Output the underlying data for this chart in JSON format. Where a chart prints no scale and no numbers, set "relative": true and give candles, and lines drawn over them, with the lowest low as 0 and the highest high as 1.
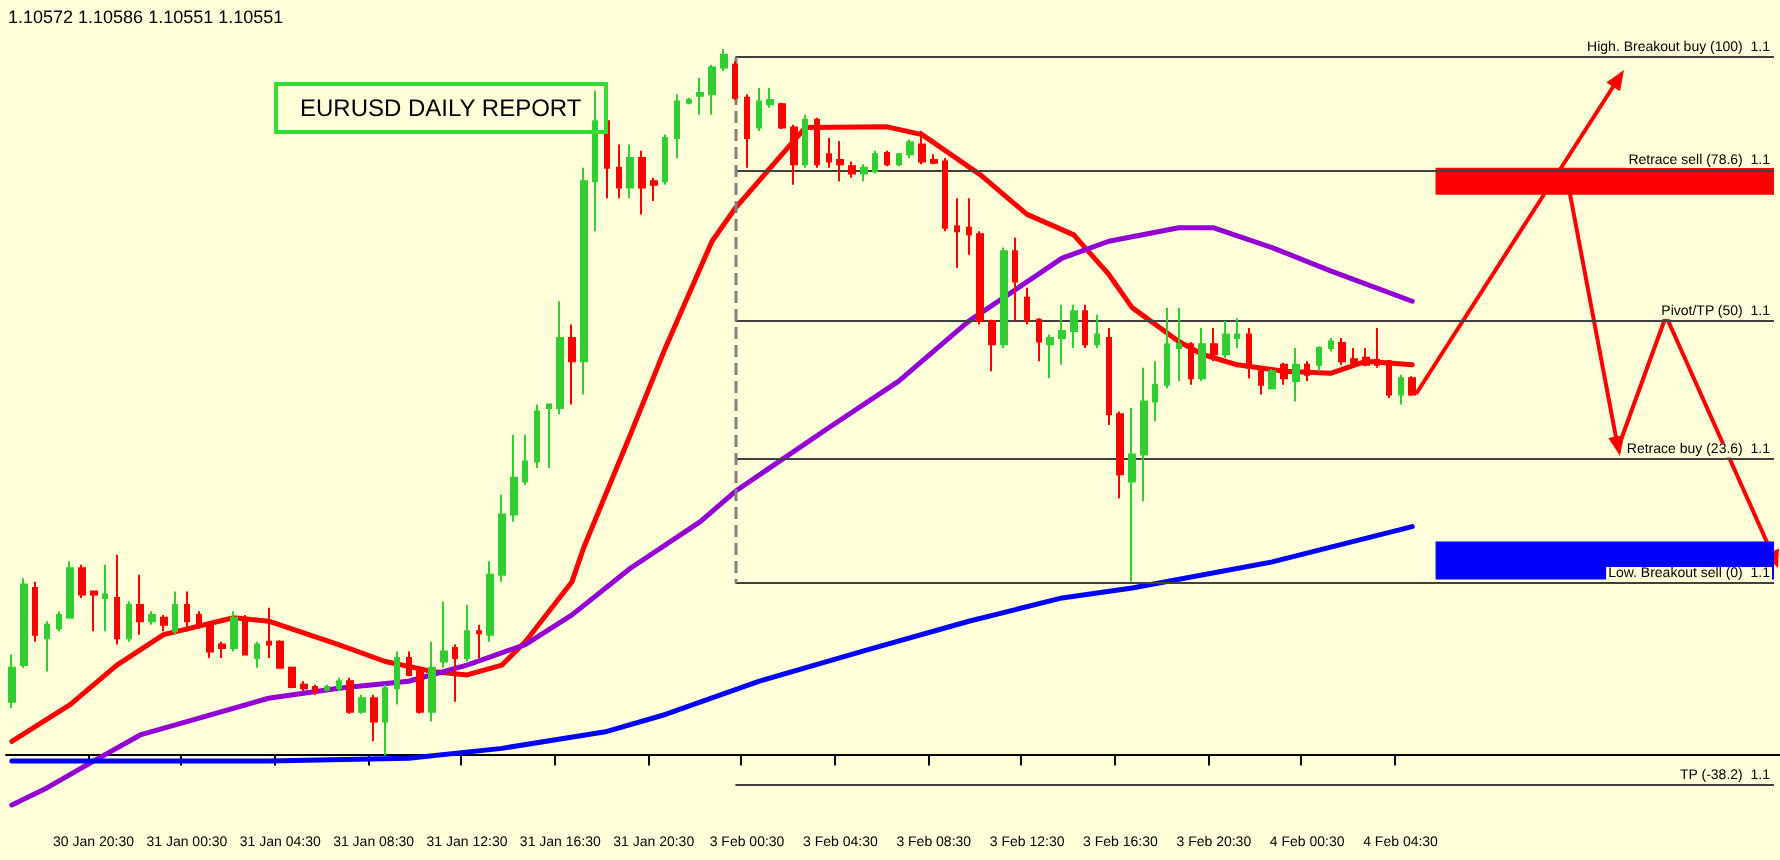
{
  "chart_data": {
    "type": "candlestick",
    "title": "EURUSD DAILY REPORT",
    "relative": true,
    "marker": "none",
    "grid": false,
    "annotations": [
      "1.10572 1.10586 1.10551 1.10551"
    ],
    "categories": [
      null,
      null,
      null,
      null,
      null,
      null,
      null,
      "30 Jan 20:30",
      null,
      null,
      null,
      null,
      null,
      null,
      null,
      "31 Jan 00:30",
      null,
      null,
      null,
      null,
      null,
      null,
      null,
      "31 Jan 04:30",
      null,
      null,
      null,
      null,
      null,
      null,
      null,
      "31 Jan 08:30",
      null,
      null,
      null,
      null,
      null,
      null,
      null,
      "31 Jan 12:30",
      null,
      null,
      null,
      null,
      null,
      null,
      null,
      "31 Jan 16:30",
      null,
      null,
      null,
      null,
      null,
      null,
      null,
      "31 Jan 20:30",
      null,
      null,
      null,
      null,
      null,
      null,
      null,
      "3 Feb 00:30",
      null,
      null,
      null,
      null,
      null,
      null,
      null,
      "3 Feb 04:30",
      null,
      null,
      null,
      null,
      null,
      null,
      null,
      "3 Feb 08:30",
      null,
      null,
      null,
      null,
      null,
      null,
      null,
      "3 Feb 12:30",
      null,
      null,
      null,
      null,
      null,
      null,
      null,
      "3 Feb 16:30",
      null,
      null,
      null,
      null,
      null,
      null,
      null,
      "3 Feb 20:30",
      null,
      null,
      null,
      null,
      null,
      null,
      null,
      "4 Feb 00:30",
      null,
      null,
      null,
      null,
      null,
      null,
      null,
      "4 Feb 04:30",
      null,
      null,
      null,
      null,
      null,
      null,
      null,
      null,
      null,
      null,
      null,
      null,
      null,
      null,
      null,
      null,
      null,
      null,
      null,
      null,
      null,
      null,
      null,
      null,
      null,
      null,
      null,
      null,
      null,
      null,
      null,
      null
    ],
    "ohlc": [
      [
        0.076,
        0.143,
        0.067,
        0.124
      ],
      [
        0.128,
        0.251,
        0.124,
        0.242
      ],
      [
        0.237,
        0.246,
        0.161,
        0.171
      ],
      [
        0.166,
        0.19,
        0.119,
        0.185
      ],
      [
        0.18,
        0.204,
        0.176,
        0.199
      ],
      [
        0.195,
        0.275,
        0.195,
        0.265
      ],
      [
        0.265,
        0.27,
        0.223,
        0.228
      ],
      [
        0.232,
        0.232,
        0.176,
        0.228
      ],
      [
        0.223,
        0.27,
        0.176,
        0.228
      ],
      [
        0.223,
        0.284,
        0.157,
        0.166
      ],
      [
        0.166,
        0.218,
        0.161,
        0.213
      ],
      [
        0.213,
        0.256,
        0.171,
        0.19
      ],
      [
        0.19,
        0.204,
        0.185,
        0.199
      ],
      [
        0.195,
        0.199,
        0.176,
        0.185
      ],
      [
        0.176,
        0.232,
        0.171,
        0.213
      ],
      [
        0.213,
        0.232,
        0.176,
        0.19
      ],
      [
        0.199,
        0.204,
        0.18,
        0.185
      ],
      [
        0.185,
        0.19,
        0.138,
        0.147
      ],
      [
        0.157,
        0.161,
        0.138,
        0.152
      ],
      [
        0.152,
        0.204,
        0.147,
        0.195
      ],
      [
        0.195,
        0.199,
        0.143,
        0.143
      ],
      [
        0.138,
        0.161,
        0.124,
        0.157
      ],
      [
        0.161,
        0.209,
        0.138,
        0.157
      ],
      [
        0.161,
        0.163,
        0.124,
        0.124
      ],
      [
        0.124,
        0.126,
        0.095,
        0.097
      ],
      [
        0.1,
        0.105,
        0.091,
        0.095
      ],
      [
        0.097,
        0.1,
        0.086,
        0.091
      ],
      [
        0.093,
        0.1,
        0.091,
        0.097
      ],
      [
        0.095,
        0.11,
        0.091,
        0.105
      ],
      [
        0.105,
        0.11,
        0.059,
        0.062
      ],
      [
        0.062,
        0.086,
        0.059,
        0.081
      ],
      [
        0.081,
        0.086,
        0.02,
        0.048
      ],
      [
        0.048,
        0.1,
        0,
        0.095
      ],
      [
        0.095,
        0.147,
        0.072,
        0.138
      ],
      [
        0.138,
        0.147,
        0.112,
        0.114
      ],
      [
        0.119,
        0.124,
        0.059,
        0.062
      ],
      [
        0.062,
        0.161,
        0.048,
        0.124
      ],
      [
        0.133,
        0.218,
        0.124,
        0.147
      ],
      [
        0.152,
        0.157,
        0.076,
        0.138
      ],
      [
        0.138,
        0.213,
        0.133,
        0.176
      ],
      [
        0.176,
        0.185,
        0.138,
        0.173
      ],
      [
        0.171,
        0.275,
        0.161,
        0.256
      ],
      [
        0.256,
        0.369,
        0.246,
        0.341
      ],
      [
        0.341,
        0.454,
        0.331,
        0.393
      ],
      [
        0.388,
        0.454,
        0.383,
        0.416
      ],
      [
        0.416,
        0.497,
        0.407,
        0.487
      ],
      [
        0.492,
        0.497,
        0.407,
        0.497
      ],
      [
        0.492,
        0.643,
        0.483,
        0.591
      ],
      [
        0.591,
        0.61,
        0.497,
        0.558
      ],
      [
        0.558,
        0.832,
        0.511,
        0.813
      ],
      [
        0.813,
        0.941,
        0.742,
        0.898
      ],
      [
        0.898,
        0.907,
        0.789,
        0.832
      ],
      [
        0.832,
        0.865,
        0.789,
        0.804
      ],
      [
        0.804,
        0.865,
        0.789,
        0.846
      ],
      [
        0.846,
        0.856,
        0.766,
        0.804
      ],
      [
        0.813,
        0.818,
        0.785,
        0.808
      ],
      [
        0.813,
        0.879,
        0.808,
        0.874
      ],
      [
        0.874,
        0.936,
        0.846,
        0.926
      ],
      [
        0.924,
        0.931,
        0.922,
        0.928
      ],
      [
        0.934,
        0.959,
        0.907,
        0.938
      ],
      [
        0.936,
        0.978,
        0.907,
        0.974
      ],
      [
        0.974,
        1,
        0.969,
        0.992
      ],
      [
        0.978,
        0.983,
        0.928,
        0.931
      ],
      [
        0.931,
        0.936,
        0.832,
        0.874
      ],
      [
        0.889,
        0.945,
        0.884,
        0.926
      ],
      [
        0.922,
        0.945,
        0.917,
        0.928
      ],
      [
        0.922,
        0.924,
        0.887,
        0.889
      ],
      [
        0.889,
        0.893,
        0.808,
        0.837
      ],
      [
        0.837,
        0.907,
        0.832,
        0.9
      ],
      [
        0.9,
        0.903,
        0.832,
        0.837
      ],
      [
        0.851,
        0.874,
        0.832,
        0.841
      ],
      [
        0.843,
        0.87,
        0.813,
        0.837
      ],
      [
        0.834,
        0.841,
        0.818,
        0.824
      ],
      [
        0.824,
        0.837,
        0.813,
        0.832
      ],
      [
        0.827,
        0.856,
        0.824,
        0.851
      ],
      [
        0.853,
        0.856,
        0.834,
        0.837
      ],
      [
        0.837,
        0.853,
        0.834,
        0.851
      ],
      [
        0.851,
        0.872,
        0.846,
        0.868
      ],
      [
        0.865,
        0.884,
        0.837,
        0.841
      ],
      [
        0.843,
        0.851,
        0.837,
        0.839
      ],
      [
        0.841,
        0.846,
        0.742,
        0.747
      ],
      [
        0.749,
        0.789,
        0.69,
        0.742
      ],
      [
        0.747,
        0.789,
        0.709,
        0.738
      ],
      [
        0.738,
        0.742,
        0.61,
        0.615
      ],
      [
        0.615,
        0.617,
        0.544,
        0.582
      ],
      [
        0.582,
        0.719,
        0.577,
        0.714
      ],
      [
        0.714,
        0.733,
        0.615,
        0.671
      ],
      [
        0.648,
        0.662,
        0.61,
        0.615
      ],
      [
        0.617,
        0.619,
        0.558,
        0.586
      ],
      [
        0.582,
        0.596,
        0.534,
        0.591
      ],
      [
        0.591,
        0.638,
        0.553,
        0.601
      ],
      [
        0.601,
        0.638,
        0.577,
        0.629
      ],
      [
        0.629,
        0.638,
        0.577,
        0.582
      ],
      [
        0.582,
        0.624,
        0.577,
        0.596
      ],
      [
        0.591,
        0.605,
        0.468,
        0.483
      ],
      [
        0.483,
        0.487,
        0.364,
        0.398
      ],
      [
        0.388,
        0.492,
        0.246,
        0.426
      ],
      [
        0.426,
        0.549,
        0.36,
        0.501
      ],
      [
        0.501,
        0.558,
        0.473,
        0.525
      ],
      [
        0.525,
        0.634,
        0.52,
        0.582
      ],
      [
        0.577,
        0.634,
        0.53,
        0.582
      ],
      [
        0.582,
        0.585,
        0.525,
        0.534
      ],
      [
        0.534,
        0.605,
        0.53,
        0.582
      ],
      [
        0.582,
        0.605,
        0.558,
        0.568
      ],
      [
        0.568,
        0.615,
        0.563,
        0.596
      ],
      [
        0.591,
        0.619,
        0.577,
        0.596
      ],
      [
        0.596,
        0.605,
        0.534,
        0.549
      ],
      [
        0.549,
        0.551,
        0.511,
        0.525
      ],
      [
        0.52,
        0.547,
        0.518,
        0.544
      ],
      [
        0.553,
        0.556,
        0.525,
        0.534
      ],
      [
        0.53,
        0.577,
        0.501,
        0.553
      ],
      [
        0.553,
        0.558,
        0.53,
        0.539
      ],
      [
        0.553,
        0.579,
        0.544,
        0.577
      ],
      [
        0.577,
        0.591,
        0.572,
        0.586
      ],
      [
        0.584,
        0.591,
        0.553,
        0.558
      ],
      [
        0.561,
        0.577,
        0.549,
        0.556
      ],
      [
        0.563,
        0.577,
        0.551,
        0.553
      ],
      [
        0.56,
        0.605,
        0.549,
        0.553
      ],
      [
        0.558,
        0.56,
        0.506,
        0.511
      ],
      [
        0.511,
        0.539,
        0.497,
        0.534
      ],
      [
        0.534,
        0.537,
        0.509,
        0.511
      ],
      null,
      null,
      null,
      null,
      null,
      null,
      null,
      null,
      null,
      null,
      null,
      null,
      null,
      null,
      null,
      null,
      null,
      null,
      null,
      null,
      null,
      null,
      null,
      null,
      null,
      null,
      null,
      null,
      null,
      null,
      null
    ],
    "series": [
      {
        "type": "line",
        "color": "#ff0000",
        "values": [
          0.02,
          null,
          null,
          null,
          null,
          0.072,
          null,
          null,
          null,
          0.128,
          null,
          null,
          null,
          0.171,
          null,
          null,
          null,
          null,
          null,
          0.195,
          null,
          null,
          0.19,
          null,
          null,
          null,
          null,
          null,
          0.157,
          null,
          null,
          null,
          0.133,
          null,
          null,
          null,
          0.119,
          null,
          null,
          0.114,
          null,
          null,
          0.128,
          null,
          0.161,
          null,
          null,
          null,
          0.246,
          0.294,
          null,
          null,
          null,
          0.454,
          null,
          null,
          0.577,
          null,
          null,
          null,
          0.728,
          null,
          0.775,
          null,
          null,
          null,
          0.851,
          null,
          0.889,
          null,
          null,
          null,
          null,
          null,
          null,
          0.89,
          null,
          null,
          0.879,
          null,
          null,
          null,
          null,
          0.822,
          null,
          null,
          null,
          0.766,
          null,
          null,
          null,
          0.737,
          null,
          null,
          0.681,
          null,
          0.634,
          null,
          null,
          null,
          0.586,
          null,
          0.568,
          null,
          null,
          0.553,
          null,
          null,
          null,
          0.544,
          null,
          null,
          null,
          0.541,
          null,
          null,
          0.558,
          null,
          null,
          null,
          0.553,
          null,
          null,
          null,
          null,
          null,
          null,
          null,
          null,
          null,
          null,
          null,
          null,
          null,
          null,
          null,
          null,
          null,
          null,
          null,
          null,
          null,
          null,
          null,
          null,
          null,
          null,
          null,
          null,
          null,
          null,
          null
        ]
      },
      {
        "type": "line",
        "color": "#9400d3",
        "values": [
          -0.07,
          null,
          null,
          -0.046,
          null,
          null,
          null,
          -0.008,
          null,
          null,
          null,
          0.029,
          null,
          null,
          null,
          0.048,
          null,
          null,
          null,
          null,
          null,
          null,
          0.081,
          null,
          null,
          null,
          null,
          null,
          0.095,
          null,
          null,
          null,
          null,
          null,
          0.105,
          null,
          null,
          null,
          null,
          0.128,
          null,
          null,
          null,
          null,
          0.157,
          null,
          null,
          null,
          0.199,
          null,
          null,
          null,
          null,
          0.265,
          null,
          null,
          null,
          null,
          null,
          0.331,
          null,
          null,
          0.374,
          null,
          null,
          null,
          null,
          null,
          null,
          null,
          0.464,
          null,
          null,
          null,
          null,
          null,
          0.53,
          null,
          null,
          null,
          null,
          null,
          0.615,
          null,
          null,
          null,
          null,
          null,
          null,
          null,
          0.704,
          null,
          null,
          null,
          0.728,
          null,
          null,
          null,
          null,
          null,
          0.747,
          null,
          null,
          0.747,
          null,
          null,
          null,
          null,
          0.719,
          null,
          null,
          null,
          null,
          0.686,
          null,
          null,
          null,
          null,
          null,
          null,
          0.643,
          null,
          null,
          null,
          null,
          null,
          null,
          null,
          null,
          null,
          null,
          null,
          null,
          null,
          null,
          null,
          null,
          null,
          null,
          null,
          null,
          null,
          null,
          null,
          null,
          null,
          null,
          null,
          null,
          null,
          null,
          null
        ]
      },
      {
        "type": "line",
        "color": "#0000ff",
        "values": [
          -0.008,
          null,
          null,
          null,
          null,
          null,
          null,
          null,
          null,
          null,
          null,
          null,
          null,
          null,
          null,
          null,
          null,
          null,
          null,
          null,
          null,
          null,
          -0.008,
          null,
          null,
          null,
          null,
          null,
          null,
          null,
          null,
          null,
          null,
          null,
          -0.004,
          null,
          null,
          null,
          null,
          null,
          null,
          null,
          0.01,
          null,
          null,
          null,
          null,
          null,
          null,
          null,
          null,
          0.034,
          null,
          null,
          null,
          null,
          0.058,
          null,
          null,
          null,
          null,
          null,
          null,
          null,
          0.105,
          null,
          null,
          null,
          null,
          null,
          null,
          null,
          null,
          0.148,
          null,
          null,
          null,
          null,
          null,
          null,
          null,
          null,
          0.19,
          null,
          null,
          null,
          null,
          null,
          null,
          null,
          0.223,
          null,
          null,
          null,
          null,
          null,
          0.237,
          null,
          null,
          null,
          null,
          null,
          null,
          null,
          null,
          null,
          null,
          null,
          0.274,
          null,
          null,
          null,
          null,
          null,
          null,
          null,
          null,
          null,
          null,
          null,
          0.324,
          null,
          null,
          null,
          null,
          null,
          null,
          null,
          null,
          null,
          null,
          null,
          null,
          null,
          null,
          null,
          null,
          null,
          null,
          null,
          null,
          null,
          null,
          null,
          null,
          null,
          null,
          null,
          null,
          null,
          null,
          null
        ]
      }
    ],
    "ref_lines": [
      {
        "axis": "y",
        "value": 0.989,
        "label": "High. Breakout buy (100)  1.1",
        "color": "#404040"
      },
      {
        "axis": "y",
        "value": 0.829,
        "label": "Retrace sell (78.6)  1.1",
        "color": "#404040"
      },
      {
        "axis": "y",
        "value": 0.615,
        "label": "Pivot/TP (50)  1.1",
        "color": "#404040"
      },
      {
        "axis": "y",
        "value": 0.419,
        "label": "Retrace buy (23.6)  1.1",
        "color": "#404040"
      },
      {
        "axis": "y",
        "value": 0.244,
        "label": "Low. Breakout sell (0)  1.1",
        "color": "#404040"
      },
      {
        "axis": "y",
        "value": -0.042,
        "label": "TP (-38.2)  1.1",
        "color": "#404040"
      }
    ],
    "bands": [
      {
        "axis": "y",
        "from": 0.794,
        "to": 0.832,
        "color": "#ff0000"
      },
      {
        "axis": "y",
        "from": 0.249,
        "to": 0.303,
        "color": "#0000ff"
      }
    ]
  }
}
